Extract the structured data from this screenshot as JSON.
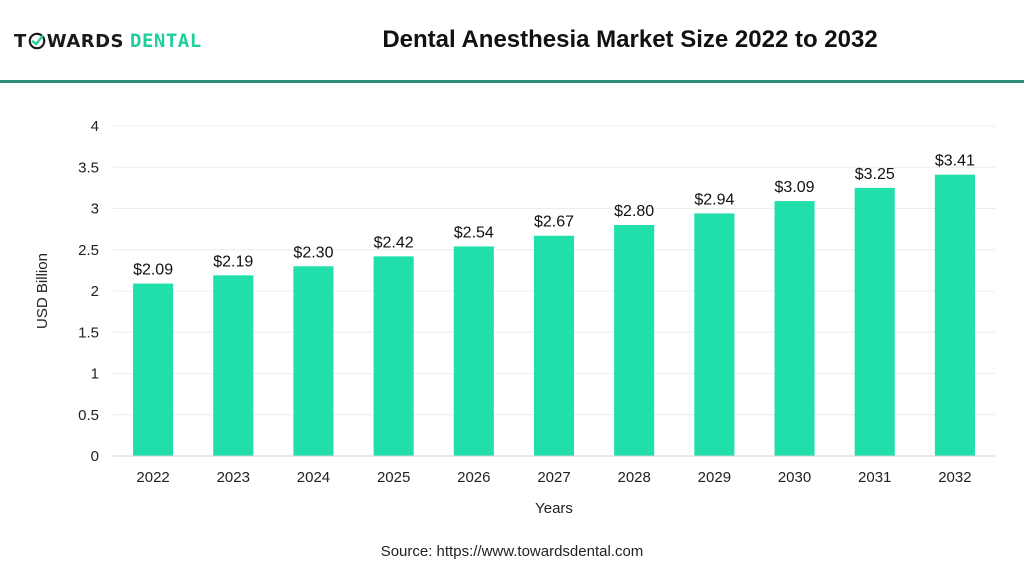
{
  "brand": {
    "part1": "T",
    "part2": "WARDS",
    "part3": "DENTAL",
    "colors": {
      "dark": "#1a1a1a",
      "accent": "#1fcf9c"
    },
    "icon": "tooth-check-icon"
  },
  "source": "Source: https://www.towardsdental.com",
  "chart_data": {
    "type": "bar",
    "title": "Dental Anesthesia Market Size 2022 to 2032",
    "xlabel": "Years",
    "ylabel": "USD Billion",
    "ylim": [
      0,
      4
    ],
    "yticks": [
      "0",
      "0.5",
      "1",
      "1.5",
      "2",
      "2.5",
      "3",
      "3.5",
      "4"
    ],
    "categories": [
      "2022",
      "2023",
      "2024",
      "2025",
      "2026",
      "2027",
      "2028",
      "2029",
      "2030",
      "2031",
      "2032"
    ],
    "values": [
      2.09,
      2.19,
      2.3,
      2.42,
      2.54,
      2.67,
      2.8,
      2.94,
      3.09,
      3.25,
      3.41
    ],
    "data_labels": [
      "$2.09",
      "$2.19",
      "$2.30",
      "$2.42",
      "$2.54",
      "$2.67",
      "$2.80",
      "$2.94",
      "$3.09",
      "$3.25",
      "$3.41"
    ],
    "bar_color": "#21dfaa",
    "grid": true,
    "legend": "none"
  }
}
